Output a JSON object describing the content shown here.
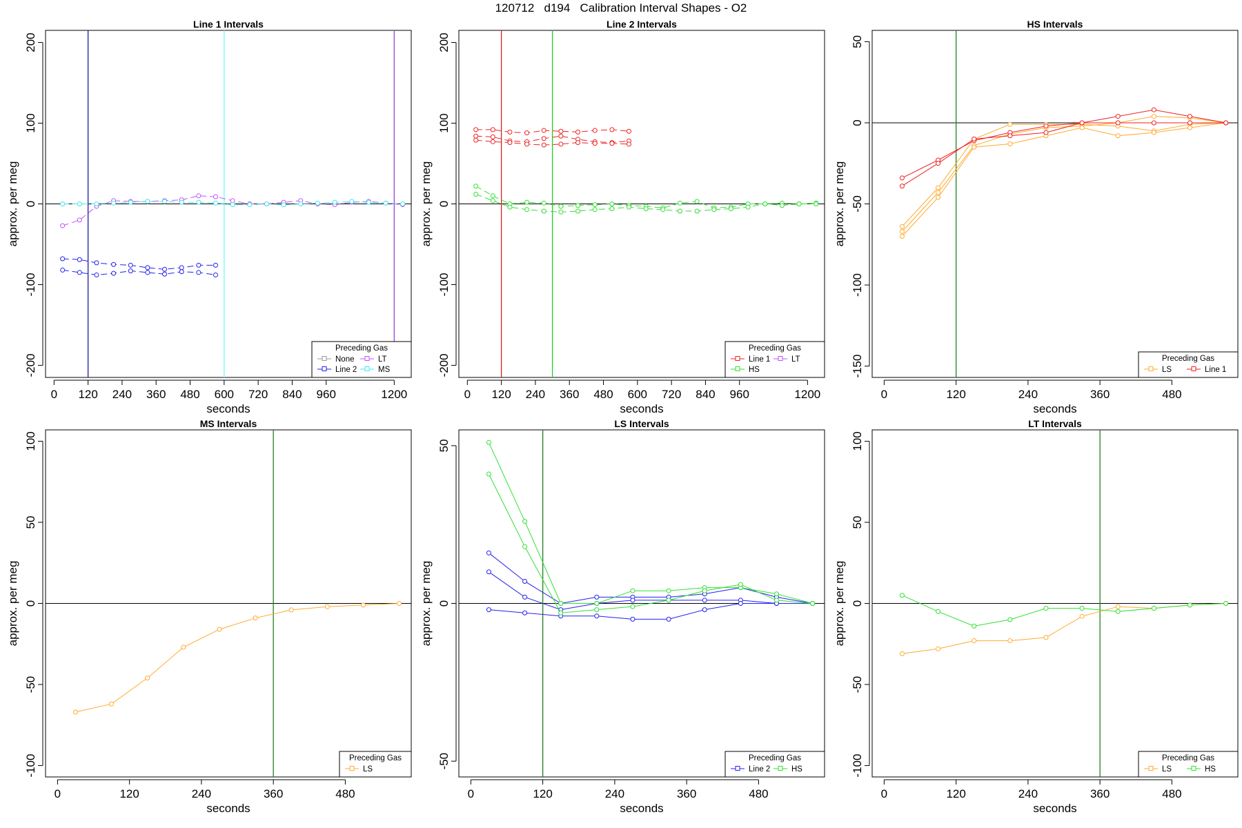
{
  "figure": {
    "title": "120712   d194   Calibration Interval Shapes - O2"
  },
  "chart_data": [
    {
      "type": "line",
      "title": "Line 1 Intervals",
      "xlabel": "seconds",
      "ylabel": "approx. per meg",
      "xlim": [
        -30,
        1260
      ],
      "ylim": [
        -215,
        215
      ],
      "xticks": [
        0,
        120,
        240,
        360,
        480,
        600,
        720,
        840,
        960,
        1200
      ],
      "yticks": [
        -200,
        -100,
        0,
        100,
        200
      ],
      "vlines": [
        {
          "x": 120,
          "color": "#1a1aa0"
        },
        {
          "x": 600,
          "color": "#66ffff"
        },
        {
          "x": 1200,
          "color": "#a040e0"
        }
      ],
      "legend": {
        "title": "Preceding Gas",
        "position": "bottom-right",
        "columns": 2,
        "entries": [
          {
            "label": "None",
            "color": "#9a9a9a"
          },
          {
            "label": "LT",
            "color": "#c050ff"
          },
          {
            "label": "Line 2",
            "color": "#2020ee"
          },
          {
            "label": "MS",
            "color": "#40e8e8"
          }
        ]
      },
      "series": [
        {
          "name": "LT",
          "color": "#c050ff",
          "dashed": true,
          "x": [
            30,
            90,
            150,
            210,
            270,
            330,
            390,
            450,
            510,
            570,
            630,
            690,
            750,
            810,
            870,
            930,
            990,
            1050,
            1110,
            1170,
            1230
          ],
          "y": [
            -27,
            -20,
            -3,
            4,
            3,
            3,
            4,
            5,
            10,
            9,
            4,
            0,
            0,
            2,
            4,
            0,
            -1,
            2,
            3,
            1,
            -1
          ]
        },
        {
          "name": "MS",
          "color": "#40e8e8",
          "dashed": true,
          "x": [
            30,
            90,
            150,
            210,
            270,
            330,
            390,
            450,
            510,
            570,
            630,
            690,
            750,
            810,
            870,
            930,
            990,
            1050,
            1110,
            1170,
            1230
          ],
          "y": [
            0,
            0,
            0,
            1,
            2,
            3,
            3,
            2,
            2,
            1,
            -1,
            -1,
            0,
            -1,
            0,
            1,
            2,
            3,
            2,
            1,
            0
          ]
        },
        {
          "name": "Line 2",
          "color": "#2020ee",
          "dashed": true,
          "x": [
            30,
            90,
            150,
            210,
            270,
            330,
            390,
            450,
            510,
            570
          ],
          "y": [
            -68,
            -69,
            -73,
            -75,
            -76,
            -79,
            -81,
            -79,
            -76,
            -76
          ]
        },
        {
          "name": "Line 2",
          "color": "#2020ee",
          "dashed": true,
          "x": [
            30,
            90,
            150,
            210,
            270,
            330,
            390,
            450,
            510,
            570
          ],
          "y": [
            -82,
            -85,
            -88,
            -86,
            -83,
            -85,
            -87,
            -84,
            -85,
            -88
          ]
        }
      ]
    },
    {
      "type": "line",
      "title": "Line 2 Intervals",
      "xlabel": "seconds",
      "ylabel": "approx. per meg",
      "xlim": [
        -30,
        1260
      ],
      "ylim": [
        -215,
        215
      ],
      "xticks": [
        0,
        120,
        240,
        360,
        480,
        600,
        720,
        840,
        960,
        1200
      ],
      "yticks": [
        -200,
        -100,
        0,
        100,
        200
      ],
      "vlines": [
        {
          "x": 120,
          "color": "#e02020"
        },
        {
          "x": 300,
          "color": "#20d020"
        }
      ],
      "legend": {
        "title": "Preceding Gas",
        "position": "bottom-right",
        "columns": 2,
        "entries": [
          {
            "label": "Line 1",
            "color": "#ee2020"
          },
          {
            "label": "LT",
            "color": "#c050ff"
          },
          {
            "label": "HS",
            "color": "#30e030"
          }
        ]
      },
      "series": [
        {
          "name": "Line 1",
          "color": "#ee2020",
          "dashed": true,
          "x": [
            30,
            90,
            150,
            210,
            270,
            330,
            390,
            450,
            510,
            570
          ],
          "y": [
            92,
            92,
            89,
            88,
            91,
            90,
            89,
            91,
            92,
            90
          ]
        },
        {
          "name": "Line 1",
          "color": "#ee2020",
          "dashed": true,
          "x": [
            30,
            90,
            150,
            210,
            270,
            330,
            390,
            450,
            510,
            570
          ],
          "y": [
            84,
            83,
            78,
            77,
            81,
            84,
            80,
            77,
            76,
            78
          ]
        },
        {
          "name": "Line 1",
          "color": "#ee2020",
          "dashed": true,
          "x": [
            30,
            90,
            150,
            210,
            270,
            330,
            390,
            450,
            510,
            570
          ],
          "y": [
            79,
            77,
            76,
            74,
            73,
            74,
            76,
            75,
            75,
            74
          ]
        },
        {
          "name": "HS",
          "color": "#30e030",
          "dashed": true,
          "x": [
            30,
            90,
            150,
            210,
            270,
            330,
            390,
            450,
            510,
            570,
            630,
            690,
            750,
            810,
            870,
            930,
            990,
            1050,
            1110,
            1170,
            1230
          ],
          "y": [
            22,
            10,
            0,
            2,
            1,
            -3,
            -2,
            -1,
            0,
            -2,
            -3,
            -5,
            1,
            3,
            -5,
            -4,
            0,
            0,
            1,
            0,
            1
          ]
        },
        {
          "name": "HS",
          "color": "#30e030",
          "dashed": true,
          "x": [
            30,
            90,
            150,
            210,
            270,
            330,
            390,
            450,
            510,
            570,
            630,
            690,
            750,
            810,
            870,
            930,
            990,
            1050,
            1110,
            1170,
            1230
          ],
          "y": [
            12,
            4,
            -4,
            -7,
            -9,
            -10,
            -9,
            -7,
            -6,
            -4,
            -6,
            -7,
            -9,
            -9,
            -7,
            -6,
            -4,
            0,
            -2,
            0,
            0
          ]
        }
      ]
    },
    {
      "type": "line",
      "title": "HS Intervals",
      "xlabel": "seconds",
      "ylabel": "approx. per meg",
      "xlim": [
        -20,
        590
      ],
      "ylim": [
        -157,
        57
      ],
      "xticks": [
        0,
        120,
        240,
        360,
        480
      ],
      "yticks": [
        -150,
        -100,
        -50,
        0,
        50
      ],
      "vlines": [
        {
          "x": 120,
          "color": "#208020"
        }
      ],
      "legend": {
        "title": "Preceding Gas",
        "position": "bottom-right",
        "columns": 2,
        "entries": [
          {
            "label": "LS",
            "color": "#ffaa30"
          },
          {
            "label": "Line 1",
            "color": "#ee2020"
          }
        ]
      },
      "series": [
        {
          "name": "LS",
          "color": "#ffaa30",
          "x": [
            30,
            90,
            150,
            210,
            270,
            330,
            390,
            450,
            510,
            570
          ],
          "y": [
            -64,
            -40,
            -10,
            -1,
            -1,
            -1,
            -2,
            -5,
            -1,
            0
          ]
        },
        {
          "name": "LS",
          "color": "#ffaa30",
          "x": [
            30,
            90,
            150,
            210,
            270,
            330,
            390,
            450,
            510,
            570
          ],
          "y": [
            -67,
            -43,
            -14,
            -7,
            -3,
            -2,
            0,
            4,
            3,
            0
          ]
        },
        {
          "name": "LS",
          "color": "#ffaa30",
          "x": [
            30,
            90,
            150,
            210,
            270,
            330,
            390,
            450,
            510,
            570
          ],
          "y": [
            -70,
            -46,
            -15,
            -13,
            -8,
            -3,
            -8,
            -6,
            -3,
            0
          ]
        },
        {
          "name": "Line 1",
          "color": "#ee2020",
          "x": [
            30,
            90,
            150,
            210,
            270,
            330,
            390,
            450,
            510,
            570
          ],
          "y": [
            -34,
            -23,
            -11,
            -6,
            -2,
            0,
            0,
            0,
            0,
            0
          ]
        },
        {
          "name": "Line 1",
          "color": "#ee2020",
          "x": [
            30,
            90,
            150,
            210,
            270,
            330,
            390,
            450,
            510,
            570
          ],
          "y": [
            -39,
            -25,
            -10,
            -8,
            -6,
            0,
            4,
            8,
            4,
            0
          ]
        }
      ]
    },
    {
      "type": "line",
      "title": "MS Intervals",
      "xlabel": "seconds",
      "ylabel": "approx. per meg",
      "xlim": [
        -20,
        590
      ],
      "ylim": [
        -107,
        107
      ],
      "xticks": [
        0,
        120,
        240,
        360,
        480
      ],
      "yticks": [
        -100,
        -50,
        0,
        50,
        100
      ],
      "vlines": [
        {
          "x": 360,
          "color": "#208020"
        }
      ],
      "legend": {
        "title": "Preceding Gas",
        "position": "bottom-right",
        "columns": 1,
        "entries": [
          {
            "label": "LS",
            "color": "#ffaa30"
          }
        ]
      },
      "series": [
        {
          "name": "LS",
          "color": "#ffaa30",
          "x": [
            30,
            90,
            150,
            210,
            270,
            330,
            390,
            450,
            510,
            570
          ],
          "y": [
            -67,
            -62,
            -46,
            -27,
            -16,
            -9,
            -4,
            -2,
            -1,
            0
          ]
        }
      ]
    },
    {
      "type": "line",
      "title": "LS Intervals",
      "xlabel": "seconds",
      "ylabel": "approx. per meg",
      "xlim": [
        -20,
        590
      ],
      "ylim": [
        -55,
        55
      ],
      "xticks": [
        0,
        120,
        240,
        360,
        480
      ],
      "yticks": [
        -50,
        0,
        50
      ],
      "vlines": [
        {
          "x": 120,
          "color": "#208020"
        }
      ],
      "legend": {
        "title": "Preceding Gas",
        "position": "bottom-right",
        "columns": 2,
        "entries": [
          {
            "label": "Line 2",
            "color": "#2020ee"
          },
          {
            "label": "HS",
            "color": "#30e030"
          }
        ]
      },
      "series": [
        {
          "name": "Line 2",
          "color": "#2020ee",
          "x": [
            30,
            90,
            150,
            210,
            270,
            330,
            390,
            450,
            510,
            570
          ],
          "y": [
            16,
            7,
            0,
            2,
            2,
            2,
            3,
            5,
            2,
            0
          ]
        },
        {
          "name": "Line 2",
          "color": "#2020ee",
          "x": [
            30,
            90,
            150,
            210,
            270,
            330,
            390,
            450,
            510,
            570
          ],
          "y": [
            10,
            2,
            -2,
            0,
            1,
            1,
            1,
            1,
            0,
            0
          ]
        },
        {
          "name": "Line 2",
          "color": "#2020ee",
          "x": [
            30,
            90,
            150,
            210,
            270,
            330,
            390,
            450,
            510,
            570
          ],
          "y": [
            -2,
            -3,
            -4,
            -4,
            -5,
            -5,
            -2,
            0,
            0,
            0
          ]
        },
        {
          "name": "HS",
          "color": "#30e030",
          "x": [
            30,
            90,
            150,
            210,
            270,
            330,
            390,
            450,
            510,
            570
          ],
          "y": [
            51,
            26,
            0,
            0,
            4,
            4,
            5,
            5,
            3,
            0
          ]
        },
        {
          "name": "HS",
          "color": "#30e030",
          "x": [
            30,
            90,
            150,
            210,
            270,
            330,
            390,
            450,
            510,
            570
          ],
          "y": [
            41,
            18,
            -3,
            -2,
            -1,
            1,
            4,
            6,
            1,
            0
          ]
        }
      ]
    },
    {
      "type": "line",
      "title": "LT Intervals",
      "xlabel": "seconds",
      "ylabel": "approx. per meg",
      "xlim": [
        -20,
        590
      ],
      "ylim": [
        -107,
        107
      ],
      "xticks": [
        0,
        120,
        240,
        360,
        480
      ],
      "yticks": [
        -100,
        -50,
        0,
        50,
        100
      ],
      "vlines": [
        {
          "x": 360,
          "color": "#208020"
        }
      ],
      "legend": {
        "title": "Preceding Gas",
        "position": "bottom-right",
        "columns": 2,
        "entries": [
          {
            "label": "LS",
            "color": "#ffaa30"
          },
          {
            "label": "HS",
            "color": "#30e030"
          }
        ]
      },
      "series": [
        {
          "name": "LS",
          "color": "#ffaa30",
          "x": [
            30,
            90,
            150,
            210,
            270,
            330,
            390,
            450,
            510,
            570
          ],
          "y": [
            -31,
            -28,
            -23,
            -23,
            -21,
            -8,
            -2,
            -3,
            -1,
            0
          ]
        },
        {
          "name": "HS",
          "color": "#30e030",
          "x": [
            30,
            90,
            150,
            210,
            270,
            330,
            390,
            450,
            510,
            570
          ],
          "y": [
            5,
            -5,
            -14,
            -10,
            -3,
            -3,
            -5,
            -3,
            -1,
            0
          ]
        }
      ]
    }
  ]
}
